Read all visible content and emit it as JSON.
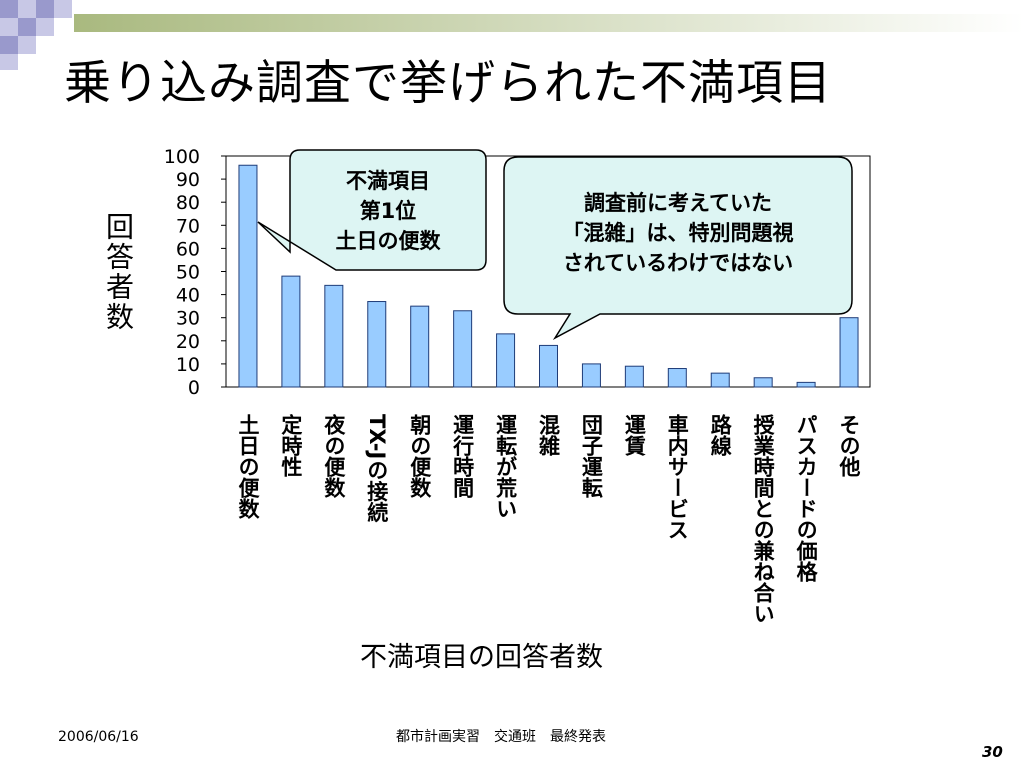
{
  "slide": {
    "title": "乗り込み調査で挙げられた不満項目",
    "footer_date": "2006/06/16",
    "footer_center": "都市計画実習　交通班　最終発表",
    "page_number": "30"
  },
  "callouts": [
    {
      "lines": [
        "不満項目",
        "第1位",
        "土日の便数"
      ]
    },
    {
      "lines": [
        "調査前に考えていた",
        "「混雑」は、特別問題視",
        "されているわけではない"
      ]
    }
  ],
  "colors": {
    "bar_fill": "#99ccff",
    "bar_stroke": "#1f3c78",
    "callout_fill": "#ddf5f3",
    "callout_stroke": "#000000",
    "deco_purple": "#9999cc",
    "deco_lavender": "#c8c8e6",
    "deco_green_start": "#a9b97f",
    "deco_green_end": "#ffffff"
  },
  "chart_data": {
    "type": "bar",
    "title": "",
    "ylabel": "回答者数",
    "xlabel": "不満項目の回答者数",
    "ylim": [
      0,
      100
    ],
    "yticks": [
      0,
      10,
      20,
      30,
      40,
      50,
      60,
      70,
      80,
      90,
      100
    ],
    "grid": false,
    "legend": "none",
    "categories": [
      "土日の便数",
      "定時性",
      "夜の便数",
      "TX-Jの接続",
      "朝の便数",
      "運行時間",
      "運転が荒い",
      "混雑",
      "団子運転",
      "運賃",
      "車内サービス",
      "路線",
      "授業時間との兼ね合い",
      "パスカードの価格",
      "その他"
    ],
    "values": [
      96,
      48,
      44,
      37,
      35,
      33,
      23,
      18,
      10,
      9,
      8,
      6,
      4,
      2,
      30
    ]
  }
}
